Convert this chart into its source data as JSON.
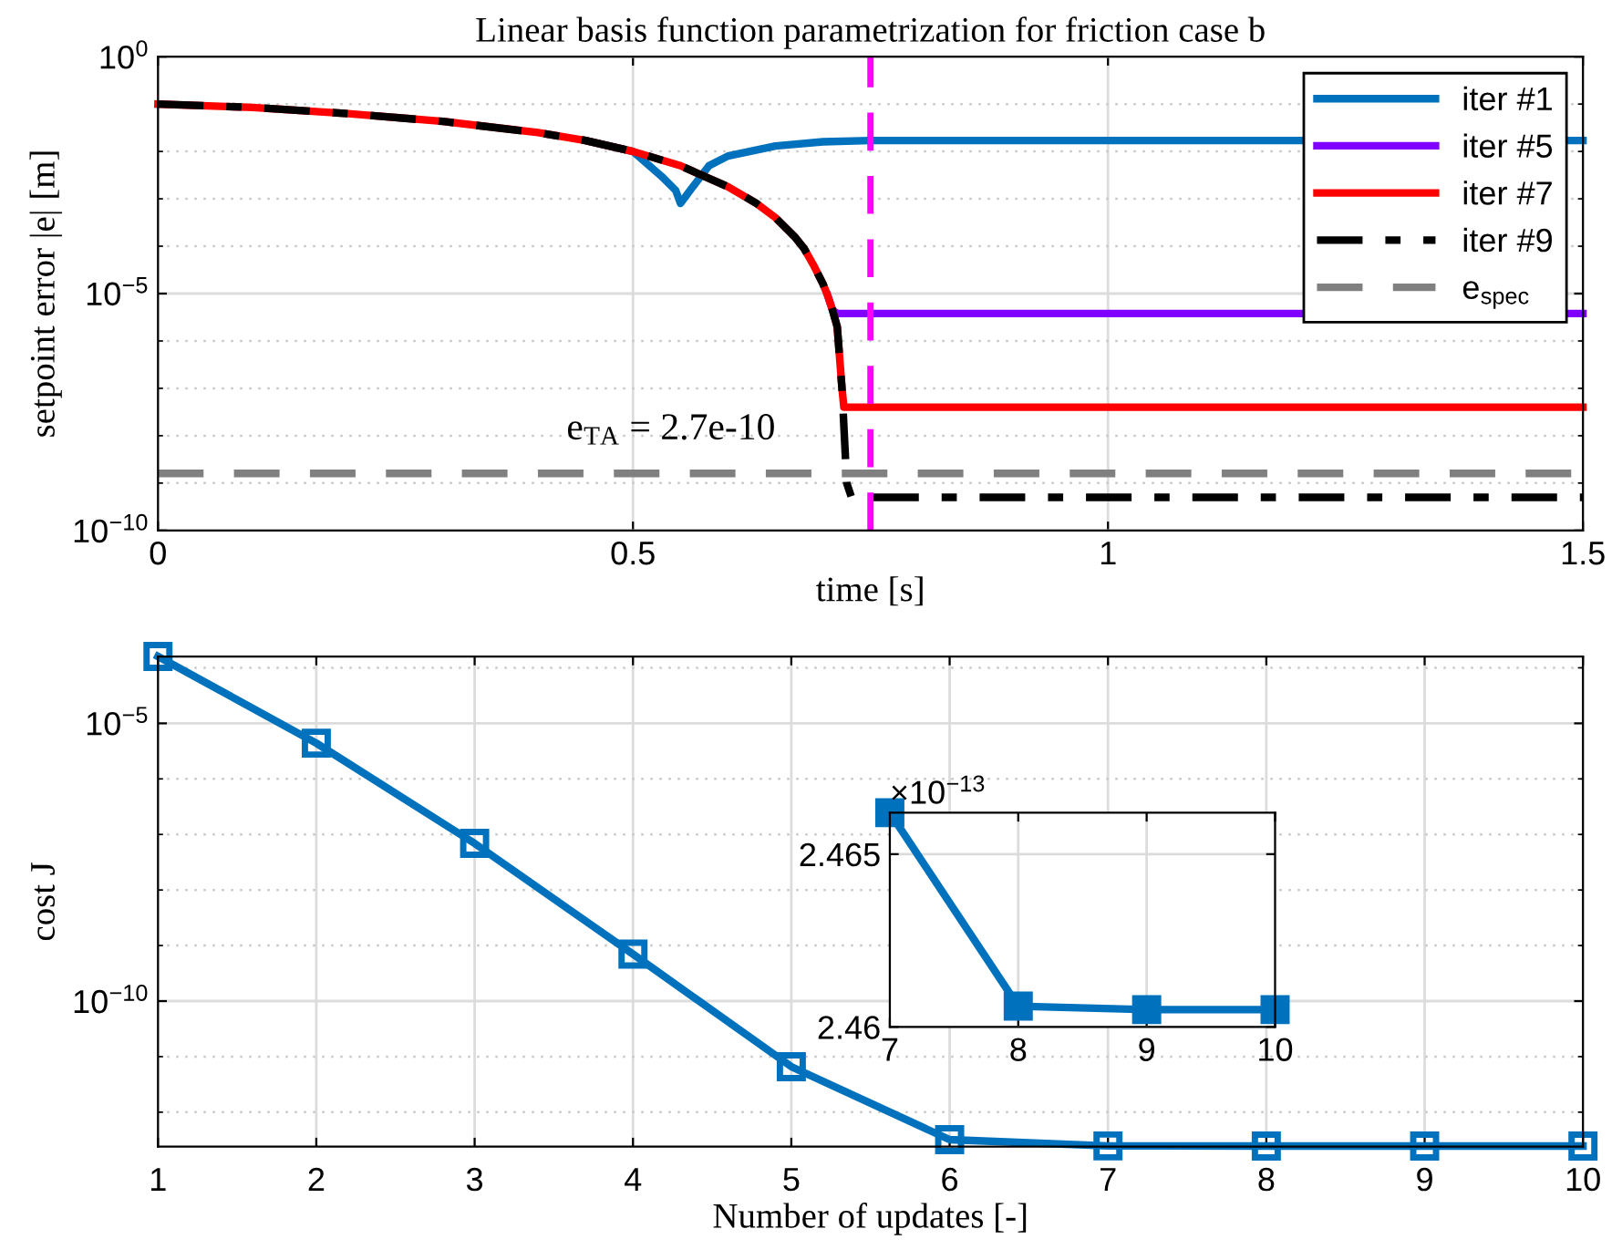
{
  "chart_data": [
    {
      "type": "line",
      "title": "Linear basis function parametrization for friction case b",
      "xlabel": "time [s]",
      "ylabel": "setpoint error |e| [m]",
      "log": "y",
      "grid": true,
      "legend": "top right",
      "marker": "none",
      "xlim": [
        0,
        1.5
      ],
      "xticks": [
        0,
        0.5,
        1,
        1.5
      ],
      "ylim": [
        1e-10,
        1
      ],
      "yticks": [
        {
          "value": 1,
          "label": "10$^{0}$"
        },
        {
          "value": 0.1,
          "label": null
        },
        {
          "value": 0.01,
          "label": null
        },
        {
          "value": 0.001,
          "label": null
        },
        {
          "value": 0.0001,
          "label": null
        },
        {
          "value": 1e-05,
          "label": "10$^{−5}$"
        },
        {
          "value": 1e-06,
          "label": null
        },
        {
          "value": 1e-07,
          "label": null
        },
        {
          "value": 1e-08,
          "label": null
        },
        {
          "value": 1e-09,
          "label": null
        },
        {
          "value": 1e-10,
          "label": "10$^{−10}$"
        }
      ],
      "series": [
        {
          "name": "iter #1",
          "color": "#0072bd",
          "line_style": "solid",
          "x": [
            0.45,
            0.5,
            0.53,
            0.545,
            0.55,
            0.56,
            0.58,
            0.6,
            0.65,
            0.7,
            0.75,
            1.5
          ],
          "values": [
            0.017,
            0.01,
            0.003,
            0.0015,
            0.0008,
            0.0015,
            0.005,
            0.008,
            0.013,
            0.016,
            0.017,
            0.017
          ]
        },
        {
          "name": "iter #5",
          "color": "#7f00ff",
          "line_style": "solid",
          "x": [
            0.705,
            0.71,
            0.715,
            1.5
          ],
          "values": [
            9e-06,
            4.5e-06,
            3.8e-06,
            3.8e-06
          ]
        },
        {
          "name": "iter #7",
          "color": "#ff0000",
          "line_style": "solid",
          "x": [
            0,
            0.1,
            0.2,
            0.3,
            0.4,
            0.45,
            0.5,
            0.55,
            0.6,
            0.63,
            0.65,
            0.67,
            0.68,
            0.69,
            0.7,
            0.705,
            0.71,
            0.715,
            0.72,
            0.722,
            1.5
          ],
          "values": [
            0.1,
            0.085,
            0.063,
            0.043,
            0.025,
            0.017,
            0.01,
            0.005,
            0.0018,
            0.0008,
            0.0004,
            0.00016,
            9e-05,
            4e-05,
            1.6e-05,
            9e-06,
            4.5e-06,
            2e-06,
            1e-07,
            4e-08,
            4e-08
          ]
        },
        {
          "name": "iter #9",
          "color": "#000000",
          "line_style": "dashdot",
          "x": [
            0,
            0.1,
            0.2,
            0.3,
            0.4,
            0.45,
            0.5,
            0.55,
            0.6,
            0.63,
            0.65,
            0.67,
            0.68,
            0.69,
            0.7,
            0.705,
            0.71,
            0.715,
            0.72,
            0.725,
            0.73,
            1.5
          ],
          "values": [
            0.1,
            0.085,
            0.063,
            0.043,
            0.025,
            0.017,
            0.01,
            0.005,
            0.0018,
            0.0008,
            0.0004,
            0.00016,
            9e-05,
            4e-05,
            1.6e-05,
            9e-06,
            4.5e-06,
            2e-06,
            1e-07,
            1e-09,
            5e-10,
            5e-10
          ]
        },
        {
          "name": "e$_{spec}$",
          "color": "#808080",
          "line_style": "dashed",
          "x": [
            0,
            1.5
          ],
          "values": [
            1.6e-09,
            1.6e-09
          ]
        }
      ],
      "ref_lines": [
        {
          "axis": "x",
          "value": 0.75,
          "color": "#ff00ff",
          "line_style": "dashed"
        }
      ],
      "annotations": [
        "e$_{TA}$ = 2.7e-10"
      ]
    },
    {
      "type": "line",
      "xlabel": "Number of updates [-]",
      "ylabel": "cost J",
      "log": "y",
      "grid": true,
      "marker": "square",
      "x": [
        1,
        2,
        3,
        4,
        5,
        6,
        7,
        8,
        9,
        10
      ],
      "xlim": [
        1,
        10
      ],
      "xticks": [
        1,
        2,
        3,
        4,
        5,
        6,
        7,
        8,
        9,
        10
      ],
      "ylim": [
        2.4e-13,
        0.00016
      ],
      "yticks": [
        {
          "value": 0.0001,
          "label": null
        },
        {
          "value": 1e-05,
          "label": "10$^{−5}$"
        },
        {
          "value": 1e-06,
          "label": null
        },
        {
          "value": 1e-07,
          "label": null
        },
        {
          "value": 1e-08,
          "label": null
        },
        {
          "value": 1e-09,
          "label": null
        },
        {
          "value": 1e-10,
          "label": "10$^{−10}$"
        },
        {
          "value": 1e-11,
          "label": null
        },
        {
          "value": 1e-12,
          "label": null
        }
      ],
      "series": [
        {
          "color": "#0072bd",
          "values": [
            0.00016,
            4.4e-06,
            6.9e-08,
            7e-10,
            6.6e-12,
            3.2e-13,
            2.47e-13,
            2.46e-13,
            2.46e-13,
            2.46e-13
          ]
        }
      ]
    },
    {
      "type": "line",
      "grid": true,
      "marker": "square",
      "x": [
        7,
        8,
        9,
        10
      ],
      "xlim": [
        7,
        10
      ],
      "xticks": [
        7,
        8,
        9,
        10
      ],
      "ylim": [
        2.46,
        2.4662
      ],
      "yticks": [
        2.46,
        2.465
      ],
      "series": [
        {
          "color": "#0072bd",
          "values": [
            2.4662,
            2.4606,
            2.4605,
            2.4605
          ]
        }
      ],
      "annotations": [
        "×10$^{−13}$"
      ]
    }
  ]
}
